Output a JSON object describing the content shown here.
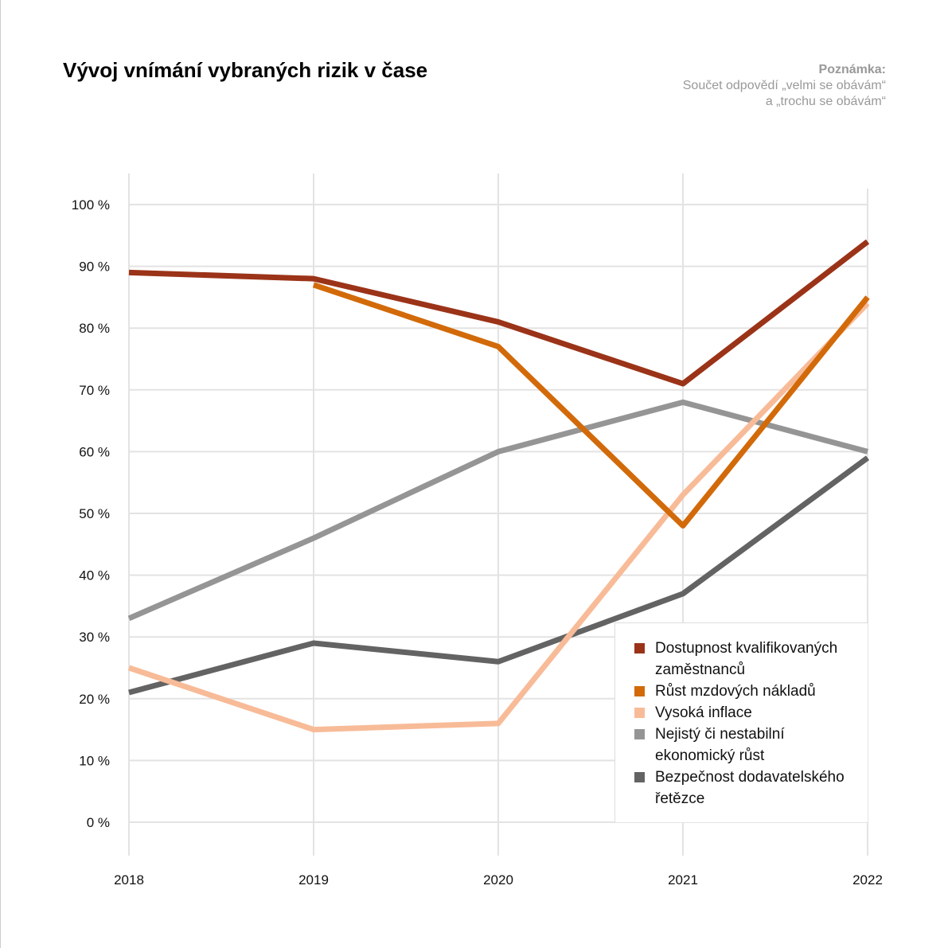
{
  "title": "Vývoj vnímání vybraných rizik v čase",
  "note": {
    "heading": "Poznámka:",
    "line1": "Součet odpovědí „velmi se obávám“",
    "line2": "a „trochu se obávám“"
  },
  "chart_data": {
    "type": "line",
    "title": "Vývoj vnímání vybraných rizik v čase",
    "x": [
      "2018",
      "2019",
      "2020",
      "2021",
      "2022"
    ],
    "ylim": [
      0,
      100
    ],
    "yticks": [
      0,
      10,
      20,
      30,
      40,
      50,
      60,
      70,
      80,
      90,
      100
    ],
    "ytick_labels": [
      "0 %",
      "10 %",
      "20 %",
      "30 %",
      "40 %",
      "50 %",
      "60 %",
      "70 %",
      "80 %",
      "90 %",
      "100 %"
    ],
    "grid": true,
    "legend_position": "bottom-right",
    "series": [
      {
        "name": "Dostupnost kvalifikovaných zaměstnanců",
        "color": "#9b3318",
        "values": [
          89,
          88,
          81,
          71,
          94
        ]
      },
      {
        "name": "Růst mzdových nákladů",
        "color": "#d26a0a",
        "values": [
          null,
          87,
          77,
          48,
          85
        ]
      },
      {
        "name": "Vysoká inflace",
        "color": "#f8bb98",
        "values": [
          25,
          15,
          16,
          53,
          84
        ]
      },
      {
        "name": "Nejistý či nestabilní ekonomický růst",
        "color": "#959595",
        "values": [
          33,
          46,
          60,
          68,
          60
        ]
      },
      {
        "name": "Bezpečnost dodavatelského řetězce",
        "color": "#636363",
        "values": [
          21,
          29,
          26,
          37,
          59
        ]
      }
    ]
  }
}
